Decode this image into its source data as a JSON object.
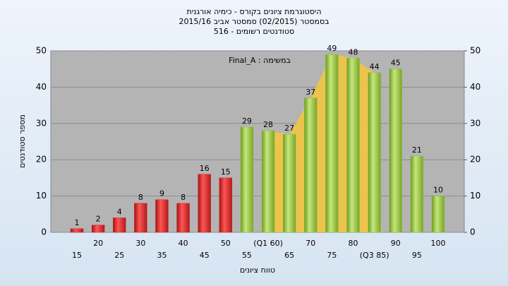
{
  "chart_data": {
    "type": "bar",
    "title": "היסטוגרמת ציונים בקורס - כימיה אורגנית",
    "subtitle": "בסמסטר  (02/2015)  סמסטר אביב 2015/16",
    "subtitle2": "סטודנטים רשומים - 516",
    "annotation": "במשימה : Final_A",
    "xlabel": "טווח ציונים",
    "ylabel": "מספר סטודנטים",
    "categories": [
      "15",
      "20",
      "25",
      "30",
      "35",
      "40",
      "45",
      "50",
      "55",
      "(Q1 60)",
      "65",
      "70",
      "75",
      "80",
      "(Q3 85)",
      "90",
      "95",
      "100"
    ],
    "values": [
      1,
      2,
      4,
      8,
      9,
      8,
      16,
      15,
      29,
      28,
      27,
      37,
      49,
      48,
      44,
      45,
      21,
      10
    ],
    "colors": [
      "#d42a2a",
      "#d42a2a",
      "#d42a2a",
      "#d42a2a",
      "#d42a2a",
      "#d42a2a",
      "#d42a2a",
      "#d42a2a",
      "#8fbf3a",
      "#8fbf3a",
      "#8fbf3a",
      "#8fbf3a",
      "#8fbf3a",
      "#8fbf3a",
      "#8fbf3a",
      "#8fbf3a",
      "#8fbf3a",
      "#8fbf3a"
    ],
    "ylim": [
      0,
      50
    ],
    "yticks": [
      0,
      10,
      20,
      30,
      40,
      50
    ],
    "y2lim": [
      0,
      50
    ],
    "y2ticks": [
      0,
      10,
      20,
      30,
      40,
      50
    ],
    "grid": true
  }
}
